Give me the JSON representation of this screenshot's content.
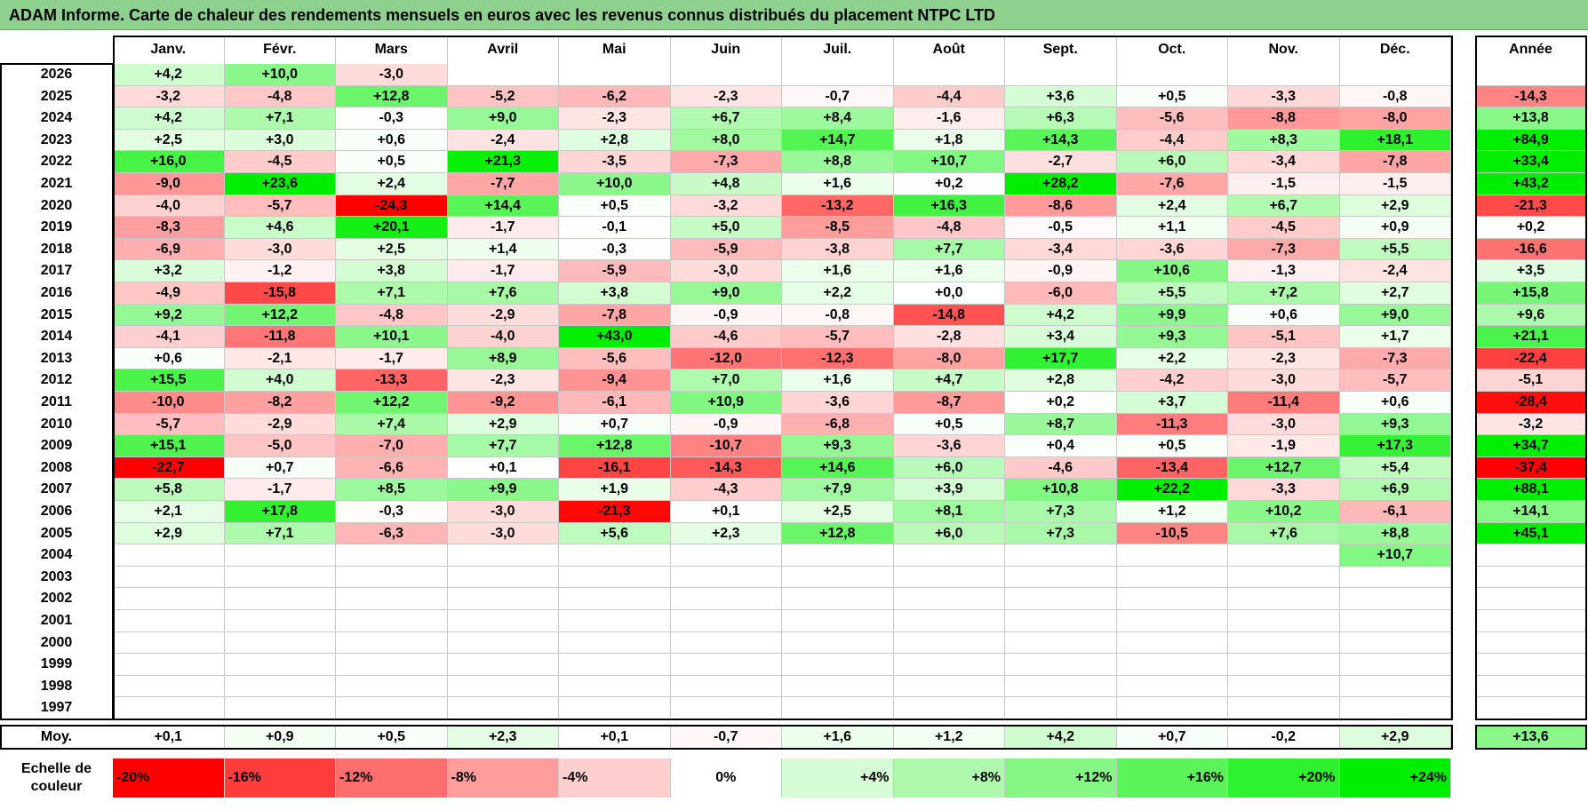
{
  "title": "ADAM Informe. Carte de chaleur des rendements mensuels en euros avec les revenus connus distribués du placement NTPC LTD",
  "chart_data": {
    "type": "heatmap",
    "title": "ADAM Informe. Carte de chaleur des rendements mensuels en euros avec les revenus connus distribués du placement NTPC LTD",
    "columns": [
      "Janv.",
      "Févr.",
      "Mars",
      "Avril",
      "Mai",
      "Juin",
      "Juil.",
      "Août",
      "Sept.",
      "Oct.",
      "Nov.",
      "Déc."
    ],
    "year_label": "Année",
    "rows": [
      {
        "year": "2026",
        "values": [
          "+4,2",
          "+10,0",
          "-3,0",
          "",
          "",
          "",
          "",
          "",
          "",
          "",
          "",
          ""
        ],
        "annual": ""
      },
      {
        "year": "2025",
        "values": [
          "-3,2",
          "-4,8",
          "+12,8",
          "-5,2",
          "-6,2",
          "-2,3",
          "-0,7",
          "-4,4",
          "+3,6",
          "+0,5",
          "-3,3",
          "-0,8"
        ],
        "annual": "-14,3"
      },
      {
        "year": "2024",
        "values": [
          "+4,2",
          "+7,1",
          "-0,3",
          "+9,0",
          "-2,3",
          "+6,7",
          "+8,4",
          "-1,6",
          "+6,3",
          "-5,6",
          "-8,8",
          "-8,0"
        ],
        "annual": "+13,8"
      },
      {
        "year": "2023",
        "values": [
          "+2,5",
          "+3,0",
          "+0,6",
          "-2,4",
          "+2,8",
          "+8,0",
          "+14,7",
          "+1,8",
          "+14,3",
          "-4,4",
          "+8,3",
          "+18,1"
        ],
        "annual": "+84,9"
      },
      {
        "year": "2022",
        "values": [
          "+16,0",
          "-4,5",
          "+0,5",
          "+21,3",
          "-3,5",
          "-7,3",
          "+8,8",
          "+10,7",
          "-2,7",
          "+6,0",
          "-3,4",
          "-7,8"
        ],
        "annual": "+33,4"
      },
      {
        "year": "2021",
        "values": [
          "-9,0",
          "+23,6",
          "+2,4",
          "-7,7",
          "+10,0",
          "+4,8",
          "+1,6",
          "+0,2",
          "+28,2",
          "-7,6",
          "-1,5",
          "-1,5"
        ],
        "annual": "+43,2"
      },
      {
        "year": "2020",
        "values": [
          "-4,0",
          "-5,7",
          "-24,3",
          "+14,4",
          "+0,5",
          "-3,2",
          "-13,2",
          "+16,3",
          "-8,6",
          "+2,4",
          "+6,7",
          "+2,9"
        ],
        "annual": "-21,3"
      },
      {
        "year": "2019",
        "values": [
          "-8,3",
          "+4,6",
          "+20,1",
          "-1,7",
          "-0,1",
          "+5,0",
          "-8,5",
          "-4,8",
          "-0,5",
          "+1,1",
          "-4,5",
          "+0,9"
        ],
        "annual": "+0,2"
      },
      {
        "year": "2018",
        "values": [
          "-6,9",
          "-3,0",
          "+2,5",
          "+1,4",
          "-0,3",
          "-5,9",
          "-3,8",
          "+7,7",
          "-3,4",
          "-3,6",
          "-7,3",
          "+5,5"
        ],
        "annual": "-16,6"
      },
      {
        "year": "2017",
        "values": [
          "+3,2",
          "-1,2",
          "+3,8",
          "-1,7",
          "-5,9",
          "-3,0",
          "+1,6",
          "+1,6",
          "-0,9",
          "+10,6",
          "-1,3",
          "-2,4"
        ],
        "annual": "+3,5"
      },
      {
        "year": "2016",
        "values": [
          "-4,9",
          "-15,8",
          "+7,1",
          "+7,6",
          "+3,8",
          "+9,0",
          "+2,2",
          "+0,0",
          "-6,0",
          "+5,5",
          "+7,2",
          "+2,7"
        ],
        "annual": "+15,8"
      },
      {
        "year": "2015",
        "values": [
          "+9,2",
          "+12,2",
          "-4,8",
          "-2,9",
          "-7,8",
          "-0,9",
          "-0,8",
          "-14,8",
          "+4,2",
          "+9,9",
          "+0,6",
          "+9,0"
        ],
        "annual": "+9,6"
      },
      {
        "year": "2014",
        "values": [
          "-4,1",
          "-11,8",
          "+10,1",
          "-4,0",
          "+43,0",
          "-4,6",
          "-5,7",
          "-2,8",
          "+3,4",
          "+9,3",
          "-5,1",
          "+1,7"
        ],
        "annual": "+21,1"
      },
      {
        "year": "2013",
        "values": [
          "+0,6",
          "-2,1",
          "-1,7",
          "+8,9",
          "-5,6",
          "-12,0",
          "-12,3",
          "-8,0",
          "+17,7",
          "+2,2",
          "-2,3",
          "-7,3"
        ],
        "annual": "-22,4"
      },
      {
        "year": "2012",
        "values": [
          "+15,5",
          "+4,0",
          "-13,3",
          "-2,3",
          "-9,4",
          "+7,0",
          "+1,6",
          "+4,7",
          "+2,8",
          "-4,2",
          "-3,0",
          "-5,7"
        ],
        "annual": "-5,1"
      },
      {
        "year": "2011",
        "values": [
          "-10,0",
          "-8,2",
          "+12,2",
          "-9,2",
          "-6,1",
          "+10,9",
          "-3,6",
          "-8,7",
          "+0,2",
          "+3,7",
          "-11,4",
          "+0,6"
        ],
        "annual": "-28,4"
      },
      {
        "year": "2010",
        "values": [
          "-5,7",
          "-2,9",
          "+7,4",
          "+2,9",
          "+0,7",
          "-0,9",
          "-6,8",
          "+0,5",
          "+8,7",
          "-11,3",
          "-3,0",
          "+9,3"
        ],
        "annual": "-3,2"
      },
      {
        "year": "2009",
        "values": [
          "+15,1",
          "-5,0",
          "-7,0",
          "+7,7",
          "+12,8",
          "-10,7",
          "+9,3",
          "-3,6",
          "+0,4",
          "+0,5",
          "-1,9",
          "+17,3"
        ],
        "annual": "+34,7"
      },
      {
        "year": "2008",
        "values": [
          "-22,7",
          "+0,7",
          "-6,6",
          "+0,1",
          "-16,1",
          "-14,3",
          "+14,6",
          "+6,0",
          "-4,6",
          "-13,4",
          "+12,7",
          "+5,4"
        ],
        "annual": "-37,4"
      },
      {
        "year": "2007",
        "values": [
          "+5,8",
          "-1,7",
          "+8,5",
          "+9,9",
          "+1,9",
          "-4,3",
          "+7,9",
          "+3,9",
          "+10,8",
          "+22,2",
          "-3,3",
          "+6,9"
        ],
        "annual": "+88,1"
      },
      {
        "year": "2006",
        "values": [
          "+2,1",
          "+17,8",
          "-0,3",
          "-3,0",
          "-21,3",
          "+0,1",
          "+2,5",
          "+8,1",
          "+7,3",
          "+1,2",
          "+10,2",
          "-6,1"
        ],
        "annual": "+14,1"
      },
      {
        "year": "2005",
        "values": [
          "+2,9",
          "+7,1",
          "-6,3",
          "-3,0",
          "+5,6",
          "+2,3",
          "+12,8",
          "+6,0",
          "+7,3",
          "-10,5",
          "+7,6",
          "+8,8"
        ],
        "annual": "+45,1"
      },
      {
        "year": "2004",
        "values": [
          "",
          "",
          "",
          "",
          "",
          "",
          "",
          "",
          "",
          "",
          "",
          "+10,7"
        ],
        "annual": ""
      },
      {
        "year": "2003",
        "values": [
          "",
          "",
          "",
          "",
          "",
          "",
          "",
          "",
          "",
          "",
          "",
          ""
        ],
        "annual": ""
      },
      {
        "year": "2002",
        "values": [
          "",
          "",
          "",
          "",
          "",
          "",
          "",
          "",
          "",
          "",
          "",
          ""
        ],
        "annual": ""
      },
      {
        "year": "2001",
        "values": [
          "",
          "",
          "",
          "",
          "",
          "",
          "",
          "",
          "",
          "",
          "",
          ""
        ],
        "annual": ""
      },
      {
        "year": "2000",
        "values": [
          "",
          "",
          "",
          "",
          "",
          "",
          "",
          "",
          "",
          "",
          "",
          ""
        ],
        "annual": ""
      },
      {
        "year": "1999",
        "values": [
          "",
          "",
          "",
          "",
          "",
          "",
          "",
          "",
          "",
          "",
          "",
          ""
        ],
        "annual": ""
      },
      {
        "year": "1998",
        "values": [
          "",
          "",
          "",
          "",
          "",
          "",
          "",
          "",
          "",
          "",
          "",
          ""
        ],
        "annual": ""
      },
      {
        "year": "1997",
        "values": [
          "",
          "",
          "",
          "",
          "",
          "",
          "",
          "",
          "",
          "",
          "",
          ""
        ],
        "annual": ""
      }
    ],
    "average": {
      "label": "Moy.",
      "values": [
        "+0,1",
        "+0,9",
        "+0,5",
        "+2,3",
        "+0,1",
        "-0,7",
        "+1,6",
        "+1,2",
        "+4,2",
        "+0,7",
        "-0,2",
        "+2,9"
      ],
      "annual": "+13,6"
    },
    "legend": {
      "label": "Echelle de couleur",
      "steps": [
        "-20%",
        "-16%",
        "-12%",
        "-8%",
        "-4%",
        "0%",
        "+4%",
        "+8%",
        "+12%",
        "+16%",
        "+20%",
        "+24%"
      ],
      "colors": [
        "#ff0000",
        "#ff3c3c",
        "#ff6e6e",
        "#ff9c9c",
        "#ffcfcf",
        "#ffffff",
        "#d6fcd6",
        "#aef9ae",
        "#84f784",
        "#5af45a",
        "#2ef22e",
        "#00ee00"
      ]
    }
  }
}
